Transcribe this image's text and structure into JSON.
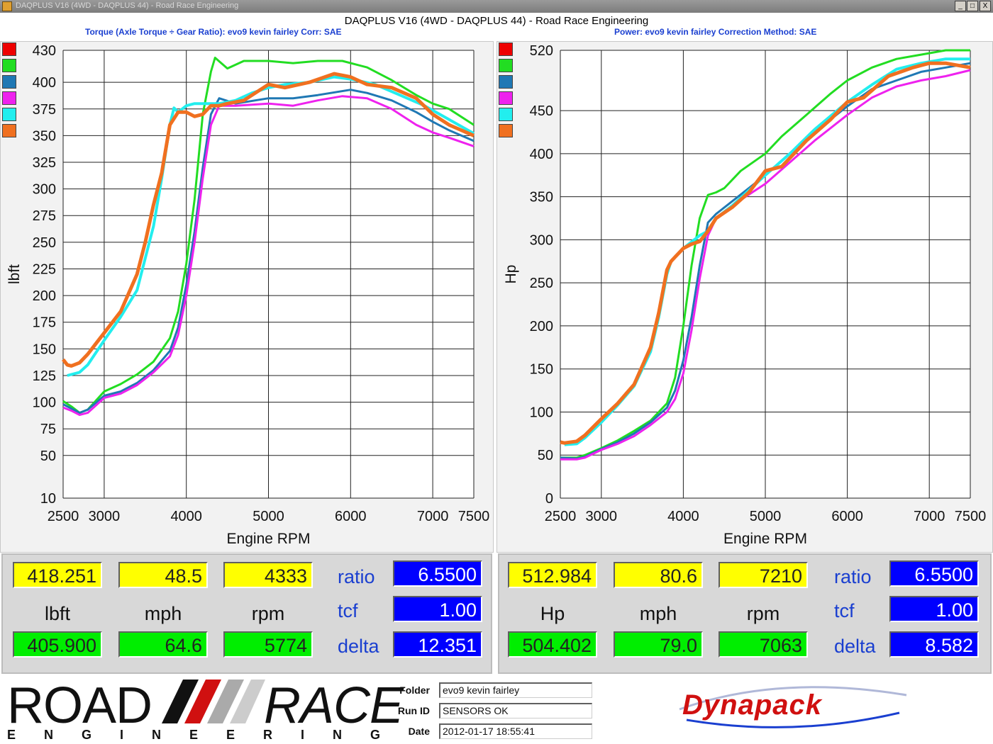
{
  "window": {
    "title": "DAQPLUS V16 (4WD - DAQPLUS 44) - Road Race Engineering",
    "min_label": "_",
    "max_label": "□",
    "close_label": "X"
  },
  "header": {
    "title": "DAQPLUS V16 (4WD - DAQPLUS 44) - Road Race Engineering",
    "left_subtitle": "Torque (Axle Torque ÷ Gear Ratio): evo9 kevin fairley      Corr: SAE",
    "right_subtitle": "Power: evo9 kevin fairley      Correction Method: SAE"
  },
  "series_colors": [
    "#ee0000",
    "#22dd22",
    "#1f78b4",
    "#ee22ee",
    "#22eeee",
    "#f07020"
  ],
  "chart_data": [
    {
      "type": "line",
      "xlabel": "Engine RPM",
      "ylabel": "lbft",
      "xlim": [
        2500,
        7500
      ],
      "ylim": [
        10,
        430
      ],
      "grid": true,
      "x_ticks": [
        2500,
        3000,
        4000,
        5000,
        6000,
        7000,
        7500
      ],
      "y_ticks": [
        10,
        50,
        75,
        100,
        125,
        150,
        175,
        200,
        225,
        250,
        275,
        300,
        325,
        350,
        375,
        400,
        430
      ],
      "series": [
        {
          "color": "#22dd22",
          "x": [
            2500,
            2600,
            2700,
            2800,
            3000,
            3200,
            3400,
            3600,
            3800,
            3900,
            4000,
            4100,
            4200,
            4300,
            4350,
            4500,
            4700,
            5000,
            5300,
            5600,
            5900,
            6200,
            6500,
            6800,
            7000,
            7200,
            7500
          ],
          "y": [
            101,
            96,
            90,
            93,
            110,
            117,
            126,
            138,
            160,
            185,
            230,
            290,
            370,
            410,
            423,
            413,
            420,
            420,
            418,
            420,
            420,
            414,
            402,
            388,
            380,
            375,
            360
          ]
        },
        {
          "color": "#1f78b4",
          "x": [
            2500,
            2600,
            2700,
            2800,
            3000,
            3200,
            3400,
            3600,
            3800,
            3900,
            4000,
            4100,
            4200,
            4300,
            4400,
            4600,
            5000,
            5300,
            5600,
            6000,
            6200,
            6500,
            6800,
            7000,
            7200,
            7500
          ],
          "y": [
            98,
            94,
            90,
            93,
            106,
            110,
            118,
            130,
            148,
            170,
            210,
            260,
            320,
            370,
            385,
            380,
            385,
            385,
            388,
            393,
            390,
            383,
            372,
            363,
            355,
            345
          ]
        },
        {
          "color": "#ee22ee",
          "x": [
            2500,
            2600,
            2700,
            2800,
            3000,
            3200,
            3400,
            3600,
            3800,
            3900,
            4000,
            4100,
            4200,
            4300,
            4400,
            4600,
            5000,
            5300,
            5600,
            5900,
            6200,
            6500,
            6800,
            7000,
            7200,
            7500
          ],
          "y": [
            95,
            92,
            88,
            90,
            104,
            108,
            116,
            128,
            143,
            163,
            200,
            250,
            310,
            360,
            378,
            378,
            380,
            378,
            383,
            387,
            385,
            375,
            360,
            353,
            348,
            340
          ]
        },
        {
          "color": "#22eeee",
          "x": [
            2550,
            2700,
            2800,
            3000,
            3200,
            3400,
            3600,
            3700,
            3800,
            3850,
            3900,
            4000,
            4100,
            4200,
            4400,
            4600,
            4800,
            5000,
            5200,
            5500,
            5800,
            6000,
            6300,
            6600,
            6900,
            7200,
            7500
          ],
          "y": [
            125,
            128,
            135,
            158,
            180,
            205,
            265,
            310,
            360,
            376,
            372,
            378,
            380,
            380,
            380,
            383,
            390,
            395,
            398,
            400,
            405,
            403,
            398,
            388,
            378,
            365,
            352
          ]
        },
        {
          "color": "#f07020",
          "x": [
            2500,
            2550,
            2600,
            2700,
            2800,
            2900,
            3000,
            3200,
            3400,
            3500,
            3600,
            3700,
            3800,
            3900,
            4000,
            4100,
            4200,
            4300,
            4400,
            4500,
            4700,
            4900,
            5000,
            5200,
            5500,
            5800,
            6000,
            6200,
            6500,
            6800,
            7000,
            7200,
            7500
          ],
          "y": [
            140,
            135,
            134,
            137,
            145,
            155,
            165,
            185,
            220,
            250,
            285,
            315,
            360,
            372,
            372,
            368,
            370,
            378,
            378,
            380,
            383,
            393,
            398,
            395,
            400,
            408,
            405,
            398,
            395,
            385,
            370,
            360,
            350
          ]
        }
      ]
    },
    {
      "type": "line",
      "xlabel": "Engine RPM",
      "ylabel": "Hp",
      "xlim": [
        2500,
        7500
      ],
      "ylim": [
        0,
        520
      ],
      "grid": true,
      "x_ticks": [
        2500,
        3000,
        4000,
        5000,
        6000,
        7000,
        7500
      ],
      "y_ticks": [
        0,
        50,
        100,
        150,
        200,
        250,
        300,
        350,
        400,
        450,
        520
      ],
      "series": [
        {
          "color": "#22dd22",
          "x": [
            2500,
            2700,
            2800,
            3000,
            3200,
            3400,
            3600,
            3800,
            3900,
            4000,
            4100,
            4200,
            4300,
            4400,
            4500,
            4700,
            5000,
            5200,
            5500,
            5800,
            6000,
            6300,
            6600,
            6900,
            7200,
            7500
          ],
          "y": [
            47,
            47,
            50,
            58,
            67,
            78,
            90,
            110,
            140,
            200,
            270,
            325,
            352,
            355,
            360,
            380,
            400,
            420,
            445,
            470,
            485,
            500,
            510,
            515,
            520,
            520
          ]
        },
        {
          "color": "#1f78b4",
          "x": [
            2500,
            2700,
            2800,
            3000,
            3200,
            3400,
            3600,
            3800,
            3900,
            4000,
            4100,
            4200,
            4300,
            4400,
            4600,
            5000,
            5300,
            5600,
            6000,
            6300,
            6600,
            6900,
            7200,
            7500
          ],
          "y": [
            47,
            46,
            48,
            57,
            65,
            75,
            88,
            105,
            125,
            160,
            210,
            270,
            320,
            330,
            345,
            375,
            400,
            425,
            455,
            475,
            485,
            495,
            500,
            505
          ]
        },
        {
          "color": "#ee22ee",
          "x": [
            2500,
            2700,
            2800,
            3000,
            3200,
            3400,
            3600,
            3800,
            3900,
            4000,
            4100,
            4200,
            4300,
            4400,
            4600,
            5000,
            5300,
            5600,
            6000,
            6300,
            6600,
            6900,
            7200,
            7500
          ],
          "y": [
            45,
            45,
            47,
            56,
            63,
            72,
            85,
            100,
            115,
            145,
            195,
            255,
            305,
            325,
            340,
            365,
            390,
            415,
            445,
            465,
            478,
            485,
            490,
            497
          ]
        },
        {
          "color": "#22eeee",
          "x": [
            2550,
            2700,
            2800,
            3000,
            3200,
            3400,
            3600,
            3700,
            3800,
            3850,
            3900,
            4000,
            4200,
            4300,
            4400,
            4600,
            5000,
            5300,
            5600,
            6000,
            6300,
            6600,
            6900,
            7200,
            7500
          ],
          "y": [
            62,
            63,
            70,
            88,
            108,
            130,
            170,
            210,
            260,
            275,
            280,
            290,
            305,
            310,
            325,
            340,
            375,
            400,
            428,
            460,
            480,
            498,
            505,
            510,
            510
          ]
        },
        {
          "color": "#f07020",
          "x": [
            2500,
            2550,
            2700,
            2800,
            3000,
            3200,
            3400,
            3600,
            3700,
            3800,
            3850,
            3900,
            4000,
            4100,
            4200,
            4300,
            4400,
            4600,
            4800,
            5000,
            5200,
            5500,
            5800,
            6000,
            6200,
            6500,
            6800,
            7000,
            7200,
            7500
          ],
          "y": [
            65,
            64,
            66,
            73,
            92,
            110,
            132,
            175,
            215,
            265,
            275,
            280,
            290,
            295,
            298,
            310,
            325,
            338,
            355,
            380,
            385,
            415,
            440,
            460,
            465,
            490,
            500,
            505,
            505,
            500
          ]
        }
      ]
    }
  ],
  "readout_left": {
    "top_values": [
      "418.251",
      "48.5",
      "4333"
    ],
    "unit_labels": [
      "lbft",
      "mph",
      "rpm"
    ],
    "bottom_values": [
      "405.900",
      "64.6",
      "5774"
    ],
    "side_labels": [
      "ratio",
      "tcf",
      "delta"
    ],
    "side_values": [
      "6.5500",
      "1.00",
      "12.351"
    ]
  },
  "readout_right": {
    "top_values": [
      "512.984",
      "80.6",
      "7210"
    ],
    "unit_labels": [
      "Hp",
      "mph",
      "rpm"
    ],
    "bottom_values": [
      "504.402",
      "79.0",
      "7063"
    ],
    "side_labels": [
      "ratio",
      "tcf",
      "delta"
    ],
    "side_values": [
      "6.5500",
      "1.00",
      "8.582"
    ]
  },
  "footer": {
    "logo_road": "ROAD",
    "logo_race": "RACE",
    "logo_sub": "ENGINEERING",
    "folder_label": "Folder",
    "folder_value": "evo9 kevin fairley",
    "runid_label": "Run ID",
    "runid_value": "SENSORS OK",
    "date_label": "Date",
    "date_value": "2012-01-17 18:55:41",
    "dynapack": "Dynapack"
  }
}
